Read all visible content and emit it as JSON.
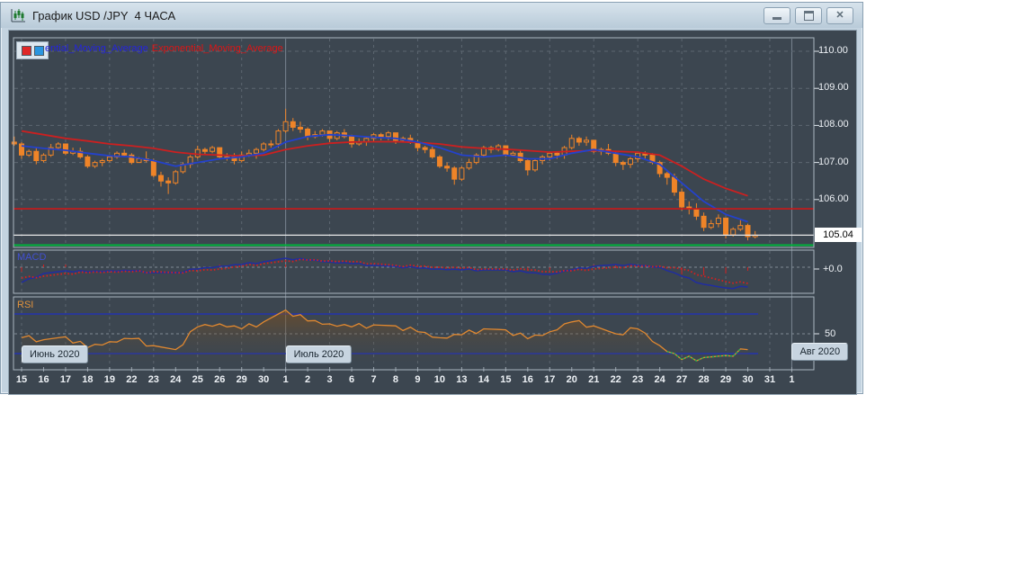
{
  "window": {
    "title": "График USD /JPY  4 ЧАСА",
    "close_glyph": "✕",
    "icons": [
      "chart-app-icon",
      "minimize-icon",
      "restore-icon",
      "close-icon"
    ]
  },
  "legend": {
    "fast_label": "ential_Moving_Average",
    "slow_label": "Exponential_Moving_Average",
    "swatch_colors": [
      "#e02828",
      "#2a96e0"
    ]
  },
  "chart_data": {
    "type": "candlestick",
    "instrument": "USD /JPY",
    "timeframe": "4 ЧАСА",
    "x_labels": [
      "15",
      "16",
      "17",
      "18",
      "19",
      "22",
      "23",
      "24",
      "25",
      "26",
      "29",
      "30",
      "1",
      "2",
      "3",
      "6",
      "7",
      "8",
      "9",
      "10",
      "13",
      "14",
      "15",
      "16",
      "17",
      "20",
      "21",
      "22",
      "23",
      "24",
      "27",
      "28",
      "29",
      "30",
      "31",
      "1"
    ],
    "month_markers": [
      {
        "label": "Июнь 2020",
        "index": 0
      },
      {
        "label": "Июль 2020",
        "index": 12
      },
      {
        "label": "Авг 2020",
        "index": 35
      }
    ],
    "y_axis": {
      "ticks": [
        110,
        109,
        108,
        107,
        106
      ],
      "tick_labels": [
        "110.00",
        "109.00",
        "108.00",
        "107.00",
        "106.00"
      ],
      "ylim": [
        104.6,
        110.3
      ],
      "current_price": 105.04,
      "current_price_label": "105.04"
    },
    "levels": {
      "red_line": 105.75,
      "current_price_line": 105.04,
      "green_line": 104.77
    },
    "candles": [
      [
        107.55,
        107.7,
        107.45,
        107.5
      ],
      [
        107.5,
        107.55,
        107.1,
        107.2
      ],
      [
        107.2,
        107.35,
        107.15,
        107.3
      ],
      [
        107.3,
        107.4,
        106.95,
        107.05
      ],
      [
        107.05,
        107.25,
        107.0,
        107.2
      ],
      [
        107.2,
        107.5,
        107.15,
        107.4
      ],
      [
        107.4,
        107.55,
        107.35,
        107.5
      ],
      [
        107.5,
        107.5,
        107.2,
        107.25
      ],
      [
        107.25,
        107.4,
        107.2,
        107.3
      ],
      [
        107.3,
        107.4,
        107.1,
        107.15
      ],
      [
        107.15,
        107.2,
        106.85,
        106.9
      ],
      [
        106.9,
        107.05,
        106.85,
        107.0
      ],
      [
        107.0,
        107.1,
        106.9,
        107.05
      ],
      [
        107.05,
        107.2,
        107.0,
        107.15
      ],
      [
        107.15,
        107.3,
        107.1,
        107.25
      ],
      [
        107.25,
        107.35,
        107.15,
        107.2
      ],
      [
        107.2,
        107.25,
        106.95,
        107.0
      ],
      [
        107.0,
        107.15,
        107.0,
        107.1
      ],
      [
        107.1,
        107.3,
        107.0,
        107.05
      ],
      [
        107.05,
        107.1,
        106.6,
        106.65
      ],
      [
        106.65,
        106.75,
        106.35,
        106.5
      ],
      [
        106.5,
        106.6,
        106.15,
        106.45
      ],
      [
        106.45,
        106.8,
        106.4,
        106.75
      ],
      [
        106.75,
        107.0,
        106.7,
        106.95
      ],
      [
        106.95,
        107.2,
        106.85,
        107.15
      ],
      [
        107.15,
        107.45,
        107.1,
        107.35
      ],
      [
        107.35,
        107.4,
        107.2,
        107.3
      ],
      [
        107.3,
        107.45,
        107.25,
        107.4
      ],
      [
        107.4,
        107.4,
        107.1,
        107.15
      ],
      [
        107.15,
        107.25,
        107.05,
        107.15
      ],
      [
        107.15,
        107.25,
        106.95,
        107.05
      ],
      [
        107.05,
        107.3,
        107.0,
        107.2
      ],
      [
        107.2,
        107.35,
        107.15,
        107.25
      ],
      [
        107.25,
        107.4,
        107.1,
        107.35
      ],
      [
        107.35,
        107.55,
        107.3,
        107.5
      ],
      [
        107.5,
        107.6,
        107.4,
        107.5
      ],
      [
        107.5,
        107.9,
        107.4,
        107.85
      ],
      [
        107.85,
        108.45,
        107.8,
        108.1
      ],
      [
        108.1,
        108.2,
        107.85,
        107.95
      ],
      [
        107.95,
        108.1,
        107.8,
        107.9
      ],
      [
        107.9,
        107.95,
        107.6,
        107.7
      ],
      [
        107.7,
        107.85,
        107.65,
        107.75
      ],
      [
        107.75,
        107.9,
        107.7,
        107.85
      ],
      [
        107.85,
        107.85,
        107.55,
        107.65
      ],
      [
        107.65,
        107.85,
        107.6,
        107.8
      ],
      [
        107.8,
        107.9,
        107.65,
        107.7
      ],
      [
        107.7,
        107.75,
        107.4,
        107.5
      ],
      [
        107.5,
        107.65,
        107.45,
        107.55
      ],
      [
        107.55,
        107.7,
        107.45,
        107.65
      ],
      [
        107.65,
        107.8,
        107.55,
        107.75
      ],
      [
        107.75,
        107.8,
        107.6,
        107.7
      ],
      [
        107.7,
        107.85,
        107.6,
        107.8
      ],
      [
        107.8,
        107.8,
        107.5,
        107.6
      ],
      [
        107.6,
        107.7,
        107.55,
        107.65
      ],
      [
        107.65,
        107.75,
        107.5,
        107.55
      ],
      [
        107.55,
        107.6,
        107.3,
        107.4
      ],
      [
        107.4,
        107.45,
        107.25,
        107.35
      ],
      [
        107.35,
        107.45,
        107.1,
        107.15
      ],
      [
        107.15,
        107.2,
        106.85,
        106.9
      ],
      [
        106.9,
        107.0,
        106.75,
        106.85
      ],
      [
        106.85,
        106.9,
        106.4,
        106.55
      ],
      [
        106.55,
        106.9,
        106.5,
        106.85
      ],
      [
        106.85,
        107.1,
        106.8,
        107.0
      ],
      [
        107.0,
        107.25,
        106.95,
        107.2
      ],
      [
        107.2,
        107.45,
        107.15,
        107.4
      ],
      [
        107.4,
        107.45,
        107.25,
        107.35
      ],
      [
        107.35,
        107.5,
        107.3,
        107.45
      ],
      [
        107.45,
        107.45,
        107.15,
        107.2
      ],
      [
        107.2,
        107.3,
        107.15,
        107.25
      ],
      [
        107.25,
        107.35,
        107.0,
        107.05
      ],
      [
        107.05,
        107.1,
        106.65,
        106.8
      ],
      [
        106.8,
        107.1,
        106.75,
        107.05
      ],
      [
        107.05,
        107.2,
        106.95,
        107.15
      ],
      [
        107.15,
        107.3,
        107.05,
        107.25
      ],
      [
        107.25,
        107.3,
        107.1,
        107.2
      ],
      [
        107.2,
        107.45,
        107.1,
        107.4
      ],
      [
        107.4,
        107.75,
        107.35,
        107.65
      ],
      [
        107.65,
        107.7,
        107.45,
        107.55
      ],
      [
        107.55,
        107.7,
        107.45,
        107.6
      ],
      [
        107.6,
        107.6,
        107.25,
        107.3
      ],
      [
        107.3,
        107.4,
        107.2,
        107.35
      ],
      [
        107.35,
        107.5,
        107.2,
        107.25
      ],
      [
        107.25,
        107.3,
        106.9,
        107.0
      ],
      [
        107.0,
        107.05,
        106.8,
        106.95
      ],
      [
        106.95,
        107.15,
        106.85,
        107.1
      ],
      [
        107.1,
        107.3,
        107.0,
        107.25
      ],
      [
        107.25,
        107.3,
        107.1,
        107.2
      ],
      [
        107.2,
        107.25,
        106.95,
        107.0
      ],
      [
        107.0,
        107.05,
        106.6,
        106.7
      ],
      [
        106.7,
        106.75,
        106.4,
        106.6
      ],
      [
        106.6,
        106.7,
        106.1,
        106.2
      ],
      [
        106.2,
        106.3,
        105.7,
        105.8
      ],
      [
        105.8,
        105.95,
        105.6,
        105.75
      ],
      [
        105.75,
        105.9,
        105.45,
        105.55
      ],
      [
        105.55,
        105.65,
        105.15,
        105.25
      ],
      [
        105.25,
        105.45,
        105.2,
        105.35
      ],
      [
        105.35,
        105.6,
        105.25,
        105.5
      ],
      [
        105.5,
        105.5,
        104.95,
        105.05
      ],
      [
        105.05,
        105.25,
        105.0,
        105.2
      ],
      [
        105.2,
        105.45,
        105.15,
        105.3
      ],
      [
        105.3,
        105.35,
        104.9,
        105.0
      ],
      [
        105.0,
        105.15,
        104.95,
        105.04
      ]
    ],
    "series": {
      "ema_fast": {
        "name": "Exponential_Moving_Average (fast)",
        "color": "#2442cc",
        "values": [
          107.45,
          107.38,
          107.33,
          107.25,
          107.18,
          107.15,
          107.05,
          106.9,
          107.0,
          107.1,
          107.15,
          107.25,
          107.55,
          107.7,
          107.75,
          107.72,
          107.68,
          107.65,
          107.55,
          107.4,
          107.2,
          107.15,
          107.2,
          107.1,
          107.1,
          107.25,
          107.35,
          107.25,
          107.15,
          106.95,
          106.45,
          105.95,
          105.6,
          105.4
        ]
      },
      "ema_slow": {
        "name": "Exponential_Moving_Average (slow)",
        "color": "#cc2020",
        "values": [
          107.85,
          107.75,
          107.65,
          107.58,
          107.5,
          107.45,
          107.38,
          107.28,
          107.22,
          107.2,
          107.18,
          107.2,
          107.35,
          107.45,
          107.52,
          107.55,
          107.56,
          107.56,
          107.54,
          107.5,
          107.42,
          107.38,
          107.36,
          107.32,
          107.28,
          107.3,
          107.32,
          107.3,
          107.28,
          107.2,
          106.9,
          106.55,
          106.3,
          106.1
        ]
      }
    },
    "macd": {
      "label": "MACD",
      "axis_label": "+0.0",
      "line": [
        -0.34,
        -0.14,
        -0.08,
        -0.1,
        -0.08,
        -0.08,
        -0.12,
        -0.12,
        -0.04,
        0.02,
        0.06,
        0.12,
        0.2,
        0.16,
        0.12,
        0.08,
        0.04,
        0.02,
        -0.02,
        -0.04,
        -0.06,
        -0.06,
        -0.06,
        -0.12,
        -0.16,
        -0.06,
        0.02,
        0.06,
        0.04,
        0.0,
        -0.2,
        -0.38,
        -0.46,
        -0.44
      ],
      "signal": [
        -0.24,
        -0.2,
        -0.14,
        -0.12,
        -0.1,
        -0.1,
        -0.1,
        -0.12,
        -0.08,
        -0.04,
        0.02,
        0.08,
        0.14,
        0.16,
        0.14,
        0.12,
        0.08,
        0.04,
        0.02,
        0.0,
        -0.02,
        -0.04,
        -0.04,
        -0.06,
        -0.1,
        -0.08,
        -0.04,
        0.0,
        0.02,
        0.02,
        -0.04,
        -0.2,
        -0.32,
        -0.36
      ]
    },
    "rsi": {
      "label": "RSI",
      "axis_label": "50",
      "bands": [
        70,
        50,
        30
      ],
      "values": [
        46,
        44,
        47,
        36,
        42,
        45,
        38,
        34,
        57,
        60,
        55,
        62,
        74,
        63,
        60,
        57,
        59,
        58,
        52,
        46,
        49,
        55,
        54,
        45,
        52,
        62,
        58,
        50,
        55,
        38,
        24,
        26,
        28,
        34
      ]
    },
    "colors": {
      "background": "#3c4650",
      "grid": "#5d6771",
      "candle": "#ef8428",
      "ema_fast": "#2442cc",
      "ema_slow": "#cc2020",
      "red_level": "#cc1818",
      "current_level": "#e8e8e8",
      "green_level": "#00b43c",
      "macd_line": "#202da0",
      "macd_signal": "#d42020",
      "rsi_line": "#e08830",
      "rsi_bands": "#2030c0"
    }
  }
}
